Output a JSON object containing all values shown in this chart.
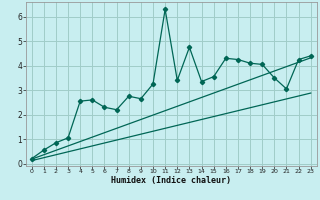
{
  "xlabel": "Humidex (Indice chaleur)",
  "bg_color": "#c8eef0",
  "grid_color": "#a0ccc8",
  "line_color": "#006655",
  "xlim": [
    -0.5,
    23.5
  ],
  "ylim": [
    -0.1,
    6.6
  ],
  "x_data": [
    0,
    1,
    2,
    3,
    4,
    5,
    6,
    7,
    8,
    9,
    10,
    11,
    12,
    13,
    14,
    15,
    16,
    17,
    18,
    19,
    20,
    21,
    22,
    23
  ],
  "y_main": [
    0.2,
    0.55,
    0.85,
    1.05,
    2.55,
    2.6,
    2.3,
    2.2,
    2.75,
    2.65,
    3.25,
    6.3,
    3.4,
    4.75,
    3.35,
    3.55,
    4.3,
    4.25,
    4.1,
    4.05,
    3.5,
    3.05,
    4.25,
    4.4
  ],
  "y_upper": [
    0.18,
    0.36,
    0.54,
    0.72,
    0.9,
    1.08,
    1.26,
    1.44,
    1.62,
    1.8,
    1.98,
    2.16,
    2.34,
    2.52,
    2.7,
    2.88,
    3.06,
    3.24,
    3.42,
    3.6,
    3.78,
    3.96,
    4.14,
    4.32
  ],
  "y_lower": [
    0.12,
    0.24,
    0.36,
    0.48,
    0.6,
    0.72,
    0.84,
    0.96,
    1.08,
    1.2,
    1.32,
    1.44,
    1.56,
    1.68,
    1.8,
    1.92,
    2.04,
    2.16,
    2.28,
    2.4,
    2.52,
    2.64,
    2.76,
    2.88
  ]
}
